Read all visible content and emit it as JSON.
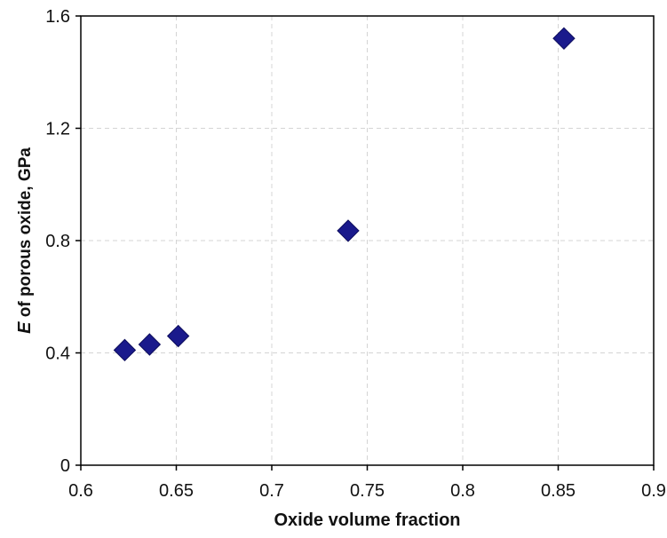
{
  "chart_data": {
    "type": "scatter",
    "title": "",
    "xlabel": "Oxide volume fraction",
    "ylabel": {
      "symbol": "E",
      "rest": " of porous oxide, GPa"
    },
    "xlim": [
      0.6,
      0.9
    ],
    "ylim": [
      0,
      1.6
    ],
    "x_ticks": [
      "0.6",
      "0.65",
      "0.7",
      "0.75",
      "0.8",
      "0.85",
      "0.9"
    ],
    "y_ticks": [
      "0",
      "0.4",
      "0.8",
      "1.2",
      "1.6"
    ],
    "grid": true,
    "legend": "none",
    "marker": "diamond",
    "marker_color": "#1a1a8c",
    "series": [
      {
        "x": [
          0.623,
          0.636,
          0.651,
          0.74,
          0.853
        ],
        "y": [
          0.41,
          0.43,
          0.46,
          0.835,
          1.52
        ]
      }
    ]
  }
}
